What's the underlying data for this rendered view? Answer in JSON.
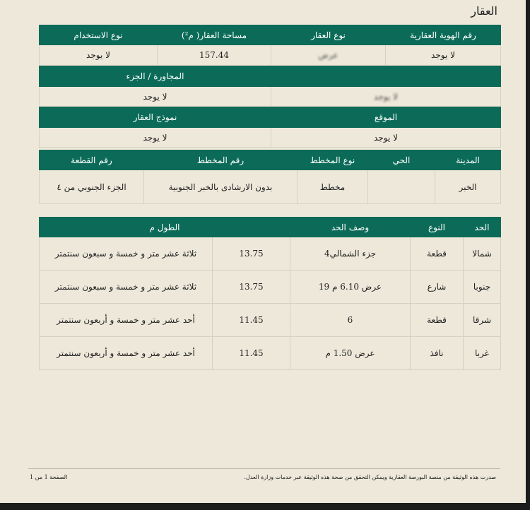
{
  "section_title": "العقار",
  "property": {
    "headers": [
      "رقم الهوية العقارية",
      "نوع العقار",
      "مساحة العقار( م²)",
      "نوع الاستخدام"
    ],
    "values": [
      "لا يوجد",
      "عرض",
      "157.44",
      "لا يوجد"
    ],
    "row2_headers": [
      "",
      "المجاورة / الجزء"
    ],
    "row2_values": [
      "لا يوجد",
      "لا يوجد"
    ],
    "row3_headers": [
      "الموقع",
      "نموذج العقار"
    ],
    "row3_values": [
      "لا يوجد",
      "لا يوجد"
    ]
  },
  "location": {
    "headers": [
      "المدينة",
      "الحي",
      "نوع المخطط",
      "رقم المخطط",
      "رقم القطعة"
    ],
    "values": [
      "الخبر",
      "",
      "مخطط",
      "بدون الارشادى بالخبر الجنوبية",
      "الجزء الجنوبي من ٤"
    ]
  },
  "boundaries": {
    "headers": [
      "الحد",
      "النوع",
      "وصف الحد",
      "الطول م"
    ],
    "rows": [
      {
        "side": "شمالا",
        "type": "قطعة",
        "desc": "جزء الشمالي4",
        "length": "13.75",
        "length_text": "ثلاثة عشر متر و خمسة و سبعون سنتمتر"
      },
      {
        "side": "جنوبا",
        "type": "شارع",
        "desc": "عرض 6.10 م 19",
        "length": "13.75",
        "length_text": "ثلاثة عشر متر و خمسة و سبعون سنتمتر"
      },
      {
        "side": "شرقا",
        "type": "قطعة",
        "desc": "6",
        "length": "11.45",
        "length_text": "أحد عشر متر و خمسة و أربعون سنتمتر"
      },
      {
        "side": "غربا",
        "type": "نافذ",
        "desc": "عرض 1.50 م",
        "length": "11.45",
        "length_text": "أحد عشر متر و خمسة و أربعون سنتمتر"
      }
    ]
  },
  "footer": {
    "note": "صدرت هذه الوثيقة من منصة البورصة العقارية ويمكن التحقق من صحة هذه الوثيقة عبر خدمات وزارة العدل.",
    "page": "الصفحة 1 من 1"
  },
  "colors": {
    "header_bg": "#0b6b58",
    "page_bg": "#ede8da"
  }
}
